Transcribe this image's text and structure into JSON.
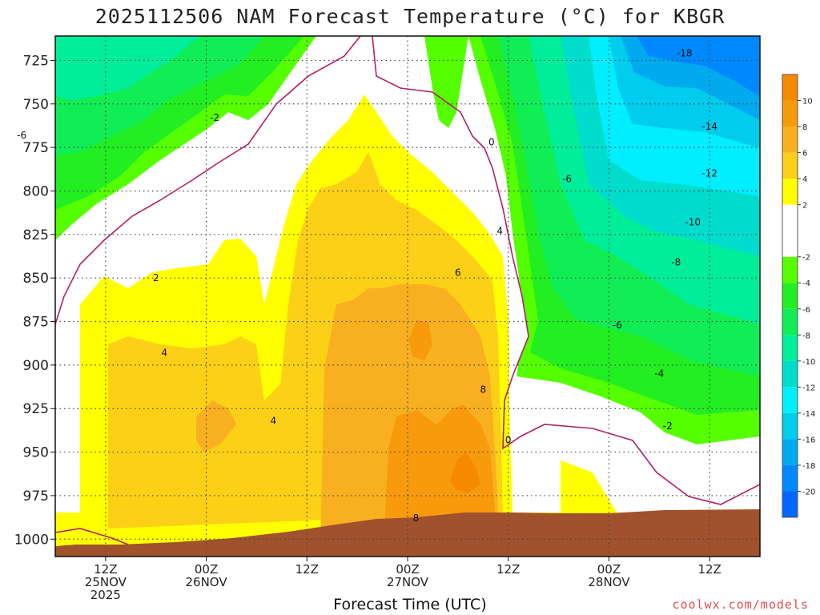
{
  "title": "2025112506 NAM Forecast Temperature (°C) for KBGR",
  "xlabel": "Forecast Time (UTC)",
  "credit": "coolwx.com/models",
  "chart_data": {
    "type": "contour",
    "title": "2025112506 NAM Forecast Temperature (°C) for KBGR",
    "xlabel": "Forecast Time (UTC)",
    "ylabel": "",
    "y_ticks": [
      725,
      750,
      775,
      800,
      825,
      850,
      875,
      900,
      925,
      950,
      975,
      1000
    ],
    "ylim": [
      1010,
      711
    ],
    "xlim_hours": [
      6,
      90
    ],
    "x_ticks": [
      {
        "hour": 12,
        "label": [
          "12Z",
          "25NOV",
          "2025"
        ]
      },
      {
        "hour": 24,
        "label": [
          "00Z",
          "26NOV"
        ]
      },
      {
        "hour": 36,
        "label": [
          "12Z"
        ]
      },
      {
        "hour": 48,
        "label": [
          "00Z",
          "27NOV"
        ]
      },
      {
        "hour": 60,
        "label": [
          "12Z"
        ]
      },
      {
        "hour": 72,
        "label": [
          "00Z",
          "28NOV"
        ]
      },
      {
        "hour": 84,
        "label": [
          "12Z"
        ]
      }
    ],
    "grid": true,
    "contour_interval": 2,
    "contour_labels": [
      {
        "value": "-18",
        "hour": 81,
        "p": 721
      },
      {
        "value": "-14",
        "hour": 84,
        "p": 763
      },
      {
        "value": "-12",
        "hour": 84,
        "p": 790
      },
      {
        "value": "-10",
        "hour": 82,
        "p": 818
      },
      {
        "value": "-8",
        "hour": 80,
        "p": 841
      },
      {
        "value": "-6",
        "hour": 2,
        "p": 768
      },
      {
        "value": "-6",
        "hour": 67,
        "p": 793
      },
      {
        "value": "-6",
        "hour": 73,
        "p": 877
      },
      {
        "value": "-4",
        "hour": 78,
        "p": 905
      },
      {
        "value": "-2",
        "hour": 25,
        "p": 758
      },
      {
        "value": "-2",
        "hour": 79,
        "p": 935
      },
      {
        "value": "0",
        "hour": 58,
        "p": 772
      },
      {
        "value": "0",
        "hour": 60,
        "p": 943
      },
      {
        "value": "2",
        "hour": 18,
        "p": 850
      },
      {
        "value": "4",
        "hour": 19,
        "p": 893
      },
      {
        "value": "4",
        "hour": 32,
        "p": 932
      },
      {
        "value": "4",
        "hour": 59,
        "p": 823
      },
      {
        "value": "6",
        "hour": 54,
        "p": 847
      },
      {
        "value": "8",
        "hour": 57,
        "p": 914
      },
      {
        "value": "8",
        "hour": 49,
        "p": 988
      }
    ],
    "colorbar": {
      "ticks": [
        10,
        8,
        6,
        4,
        2,
        -2,
        -4,
        -6,
        -8,
        -10,
        -12,
        -14,
        -16,
        -18,
        -20
      ],
      "bands": [
        {
          "from": 10,
          "to": 12,
          "color": "#f58a00"
        },
        {
          "from": 8,
          "to": 10,
          "color": "#f79a0c"
        },
        {
          "from": 6,
          "to": 8,
          "color": "#f9b020"
        },
        {
          "from": 4,
          "to": 6,
          "color": "#fdd018"
        },
        {
          "from": 2,
          "to": 4,
          "color": "#ffff00"
        },
        {
          "from": -2,
          "to": 2,
          "color": "#ffffff"
        },
        {
          "from": -4,
          "to": -2,
          "color": "#55ff00"
        },
        {
          "from": -6,
          "to": -4,
          "color": "#22ee22"
        },
        {
          "from": -8,
          "to": -6,
          "color": "#11ee55"
        },
        {
          "from": -10,
          "to": -8,
          "color": "#00ee99"
        },
        {
          "from": -12,
          "to": -10,
          "color": "#00ddcc"
        },
        {
          "from": -14,
          "to": -12,
          "color": "#00eeff"
        },
        {
          "from": -16,
          "to": -14,
          "color": "#00ccee"
        },
        {
          "from": -18,
          "to": -16,
          "color": "#00aaee"
        },
        {
          "from": -20,
          "to": -18,
          "color": "#0088ff"
        },
        {
          "from": -22,
          "to": -20,
          "color": "#0066ff"
        }
      ]
    },
    "terrain_color": "#a0522d",
    "zero_line_color": "#b0206a"
  }
}
